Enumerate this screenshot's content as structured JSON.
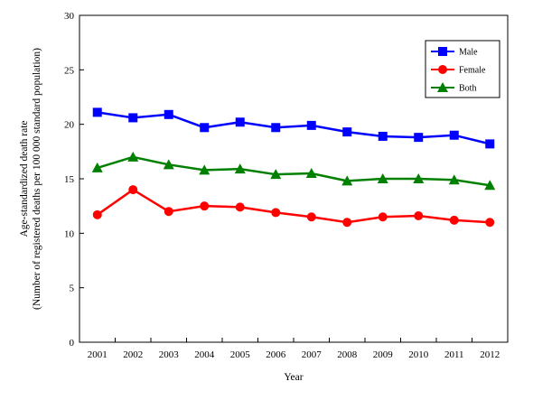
{
  "chart_data": {
    "type": "line",
    "xlabel": "Year",
    "ylabel_line1": "Age-standardized death rate",
    "ylabel_line2": "(Number of registered deaths per 100 000 standard population)",
    "categories": [
      "2001",
      "2002",
      "2003",
      "2004",
      "2005",
      "2006",
      "2007",
      "2008",
      "2009",
      "2010",
      "2011",
      "2012"
    ],
    "ylim": [
      0,
      30
    ],
    "yticks": [
      "0",
      "5",
      "10",
      "15",
      "20",
      "25",
      "30"
    ],
    "grid": false,
    "legend_position": "top-right",
    "series": [
      {
        "name": "Male",
        "color": "#0000ff",
        "marker": "square",
        "values": [
          21.1,
          20.6,
          20.9,
          19.7,
          20.2,
          19.7,
          19.9,
          19.3,
          18.9,
          18.8,
          19.0,
          18.2
        ]
      },
      {
        "name": "Female",
        "color": "#ff0000",
        "marker": "circle",
        "values": [
          11.7,
          14.0,
          12.0,
          12.5,
          12.4,
          11.9,
          11.5,
          11.0,
          11.5,
          11.6,
          11.2,
          11.0
        ]
      },
      {
        "name": "Both",
        "color": "#008000",
        "marker": "triangle",
        "values": [
          16.0,
          17.0,
          16.3,
          15.8,
          15.9,
          15.4,
          15.5,
          14.8,
          15.0,
          15.0,
          14.9,
          14.4
        ]
      }
    ]
  }
}
